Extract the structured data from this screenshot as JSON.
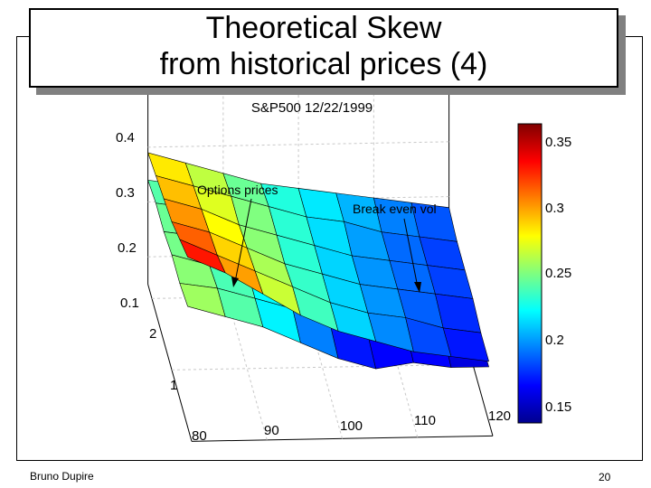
{
  "slide": {
    "title_line1": "Theoretical Skew",
    "title_line2": "from historical prices (4)",
    "author": "Bruno Dupire",
    "page_number": "20"
  },
  "chart_data": {
    "type": "surface",
    "title": "S&P500 12/22/1999",
    "z_ticks": [
      "0.4",
      "0.3",
      "0.2",
      "0.1"
    ],
    "strike_ticks": [
      "80",
      "90",
      "100",
      "110",
      "120"
    ],
    "maturity_ticks": [
      "2",
      "1"
    ],
    "colorbar": {
      "ticks": [
        "0.35",
        "0.3",
        "0.25",
        "0.2",
        "0.15"
      ],
      "range": [
        0.13,
        0.37
      ],
      "colormap": "jet"
    },
    "grid": true,
    "annotations": [
      {
        "text": "Options prices",
        "target": "implied volatility surface (upper sheet)"
      },
      {
        "text": "Break even vol",
        "target": "break-even volatility surface (lower sheet)"
      }
    ],
    "surfaces": [
      {
        "name": "Options prices",
        "strikes": [
          80,
          85,
          90,
          95,
          100,
          105,
          110,
          115,
          120
        ],
        "maturities": [
          0.2,
          0.6,
          1.0,
          1.4,
          1.8,
          2.2
        ],
        "values": [
          [
            0.36,
            0.33,
            0.29,
            0.25,
            0.22,
            0.2,
            0.18,
            0.17,
            0.16
          ],
          [
            0.34,
            0.31,
            0.28,
            0.25,
            0.22,
            0.2,
            0.19,
            0.17,
            0.16
          ],
          [
            0.32,
            0.3,
            0.27,
            0.24,
            0.22,
            0.2,
            0.19,
            0.18,
            0.17
          ],
          [
            0.31,
            0.29,
            0.26,
            0.24,
            0.22,
            0.2,
            0.19,
            0.18,
            0.17
          ],
          [
            0.3,
            0.28,
            0.26,
            0.24,
            0.22,
            0.21,
            0.19,
            0.18,
            0.17
          ],
          [
            0.29,
            0.27,
            0.25,
            0.23,
            0.22,
            0.21,
            0.2,
            0.19,
            0.18
          ]
        ]
      },
      {
        "name": "Break even vol",
        "strikes": [
          80,
          85,
          90,
          95,
          100,
          105,
          110,
          115,
          120
        ],
        "maturities": [
          0.2,
          0.6,
          1.0,
          1.4,
          1.8,
          2.2
        ],
        "values": [
          [
            0.27,
            0.25,
            0.23,
            0.2,
            0.17,
            0.15,
            0.16,
            0.15,
            0.15
          ],
          [
            0.26,
            0.25,
            0.23,
            0.21,
            0.18,
            0.16,
            0.17,
            0.16,
            0.15
          ],
          [
            0.26,
            0.24,
            0.23,
            0.21,
            0.19,
            0.17,
            0.17,
            0.16,
            0.16
          ],
          [
            0.25,
            0.24,
            0.22,
            0.21,
            0.19,
            0.18,
            0.17,
            0.17,
            0.16
          ],
          [
            0.25,
            0.24,
            0.22,
            0.21,
            0.2,
            0.18,
            0.18,
            0.17,
            0.17
          ],
          [
            0.24,
            0.23,
            0.22,
            0.21,
            0.2,
            0.19,
            0.18,
            0.18,
            0.17
          ]
        ]
      }
    ]
  }
}
